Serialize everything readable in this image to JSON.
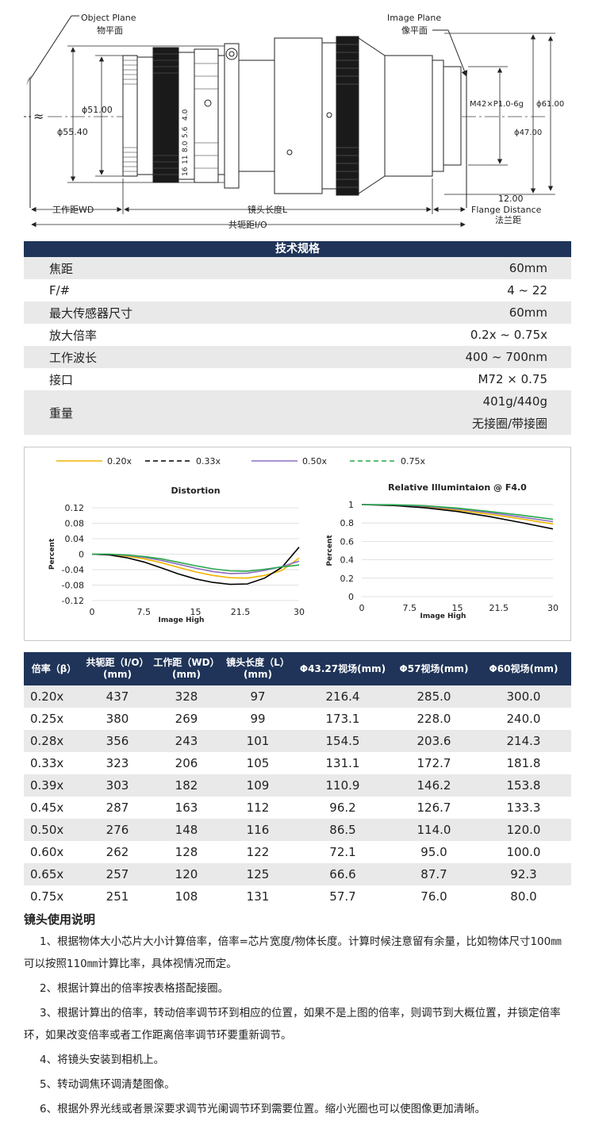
{
  "drawing": {
    "object_plane_en": "Object Plane",
    "object_plane_cn": "物平面",
    "image_plane_en": "Image Plane",
    "image_plane_cn": "像平面",
    "infinity": "≈",
    "dim_phi51": "ϕ51.00",
    "dim_phi55": "ϕ55.40",
    "dim_thread": "M42×P1.0-6g",
    "dim_phi61": "ϕ61.00",
    "dim_phi47": "ϕ47.00",
    "dim_flange_value": "12.00",
    "flange_en": "Flange Distance",
    "flange_cn": "法兰距",
    "wd_label": "工作距WD",
    "lens_length_label": "镜头长度L",
    "io_label": "共轭距I/O",
    "aperture_marks": [
      "4.0",
      "5.6",
      "8.0",
      "11",
      "16"
    ]
  },
  "spec": {
    "title": "技术规格",
    "rows": [
      {
        "label": "焦距",
        "value": "60mm"
      },
      {
        "label": "F/#",
        "value": "4 ~ 22"
      },
      {
        "label": "最大传感器尺寸",
        "value": "60mm"
      },
      {
        "label": "放大倍率",
        "value": "0.2x ~ 0.75x"
      },
      {
        "label": "工作波长",
        "value": "400 ~ 700nm"
      },
      {
        "label": "接口",
        "value": "M72 × 0.75"
      }
    ],
    "weight": {
      "label": "重量",
      "value": "401g/440g",
      "note": "无接圈/带接圈"
    }
  },
  "chart_data": [
    {
      "type": "line",
      "title": "Distortion",
      "xlabel": "Image High",
      "ylabel": "Percent",
      "xlim": [
        0,
        30
      ],
      "ylim": [
        -0.12,
        0.12
      ],
      "x_ticks": [
        "0",
        "7.5",
        "15",
        "21.5",
        "30"
      ],
      "y_ticks": [
        "0.12",
        "0.08",
        "0.04",
        "0",
        "-0.04",
        "-0.08",
        "-0.12"
      ],
      "x": [
        0,
        2.5,
        5,
        7.5,
        10,
        12.5,
        15,
        17.5,
        20,
        22.5,
        25,
        27.5,
        30
      ],
      "series": [
        {
          "name": "0.20x",
          "color": "#f0b400",
          "dash": "",
          "values": [
            0,
            -0.001,
            -0.005,
            -0.012,
            -0.022,
            -0.034,
            -0.046,
            -0.055,
            -0.061,
            -0.062,
            -0.055,
            -0.042,
            -0.01
          ]
        },
        {
          "name": "0.33x",
          "color": "#000000",
          "dash": "6,4",
          "values": [
            0,
            -0.002,
            -0.009,
            -0.02,
            -0.035,
            -0.051,
            -0.064,
            -0.073,
            -0.078,
            -0.077,
            -0.062,
            -0.034,
            0.018
          ]
        },
        {
          "name": "0.50x",
          "color": "#8a6fc0",
          "dash": "",
          "values": [
            0,
            0,
            -0.003,
            -0.008,
            -0.016,
            -0.026,
            -0.036,
            -0.045,
            -0.05,
            -0.049,
            -0.042,
            -0.032,
            -0.018
          ]
        },
        {
          "name": "0.75x",
          "color": "#27a84a",
          "dash": "6,4",
          "values": [
            0,
            0,
            -0.002,
            -0.006,
            -0.012,
            -0.021,
            -0.03,
            -0.038,
            -0.043,
            -0.044,
            -0.039,
            -0.033,
            -0.028
          ]
        }
      ]
    },
    {
      "type": "line",
      "title": "Relative Illumintaion @ F4.0",
      "xlabel": "Image High",
      "ylabel": "Percent",
      "xlim": [
        0,
        30
      ],
      "ylim": [
        0,
        1
      ],
      "x_ticks": [
        "0",
        "7.5",
        "15",
        "21.5",
        "30"
      ],
      "y_ticks": [
        "1",
        "0.8",
        "0.6",
        "0.4",
        "0.2",
        "0"
      ],
      "x": [
        0,
        5,
        10,
        15,
        20,
        25,
        30
      ],
      "series": [
        {
          "name": "0.20x",
          "color": "#f0b400",
          "dash": "",
          "values": [
            1.0,
            0.995,
            0.975,
            0.94,
            0.895,
            0.845,
            0.79
          ]
        },
        {
          "name": "0.33x",
          "color": "#000000",
          "dash": "",
          "values": [
            1.0,
            0.99,
            0.965,
            0.925,
            0.87,
            0.805,
            0.735
          ]
        },
        {
          "name": "0.50x",
          "color": "#8a6fc0",
          "dash": "",
          "values": [
            1.0,
            0.997,
            0.982,
            0.952,
            0.912,
            0.865,
            0.815
          ]
        },
        {
          "name": "0.75x",
          "color": "#27a84a",
          "dash": "",
          "values": [
            1.0,
            0.998,
            0.987,
            0.962,
            0.925,
            0.885,
            0.84
          ]
        }
      ]
    }
  ],
  "legend": [
    {
      "label": "0.20x",
      "color": "#f0b400",
      "dash": ""
    },
    {
      "label": "0.33x",
      "color": "#000000",
      "dash": "6,4"
    },
    {
      "label": "0.50x",
      "color": "#8a6fc0",
      "dash": ""
    },
    {
      "label": "0.75x",
      "color": "#27a84a",
      "dash": "6,4"
    }
  ],
  "table": {
    "headers": [
      [
        "倍率（β）",
        ""
      ],
      [
        "共轭距（I/O）",
        "(mm)"
      ],
      [
        "工作距（WD）",
        "(mm)"
      ],
      [
        "镜头长度（L）",
        "(mm)"
      ],
      [
        "Φ43.27视场(mm)",
        ""
      ],
      [
        "Φ57视场(mm)",
        ""
      ],
      [
        "Φ60视场(mm)",
        ""
      ]
    ],
    "rows": [
      [
        "0.20x",
        "437",
        "328",
        "97",
        "216.4",
        "285.0",
        "300.0"
      ],
      [
        "0.25x",
        "380",
        "269",
        "99",
        "173.1",
        "228.0",
        "240.0"
      ],
      [
        "0.28x",
        "356",
        "243",
        "101",
        "154.5",
        "203.6",
        "214.3"
      ],
      [
        "0.33x",
        "323",
        "206",
        "105",
        "131.1",
        "172.7",
        "181.8"
      ],
      [
        "0.39x",
        "303",
        "182",
        "109",
        "110.9",
        "146.2",
        "153.8"
      ],
      [
        "0.45x",
        "287",
        "163",
        "112",
        "96.2",
        "126.7",
        "133.3"
      ],
      [
        "0.50x",
        "276",
        "148",
        "116",
        "86.5",
        "114.0",
        "120.0"
      ],
      [
        "0.60x",
        "262",
        "128",
        "122",
        "72.1",
        "95.0",
        "100.0"
      ],
      [
        "0.65x",
        "257",
        "120",
        "125",
        "66.6",
        "87.7",
        "92.3"
      ],
      [
        "0.75x",
        "251",
        "108",
        "131",
        "57.7",
        "76.0",
        "80.0"
      ]
    ]
  },
  "usage": {
    "title": "镜头使用说明",
    "items": [
      "1、根据物体大小芯片大小计算倍率，倍率=芯片宽度/物体长度。计算时候注意留有余量，比如物体尺寸100㎜可以按照110㎜计算比率，具体视情况而定。",
      "2、根据计算出的倍率按表格搭配接圈。",
      "3、根据计算出的倍率，转动倍率调节环到相应的位置，如果不是上图的倍率，则调节到大概位置，并锁定倍率环，如果改变倍率或者工作距离倍率调节环要重新调节。",
      "4、将镜头安装到相机上。",
      "5、转动调焦环调清楚图像。",
      "6、根据外界光线或者景深要求调节光阑调节环到需要位置。缩小光圈也可以使图像更加清晰。"
    ]
  }
}
